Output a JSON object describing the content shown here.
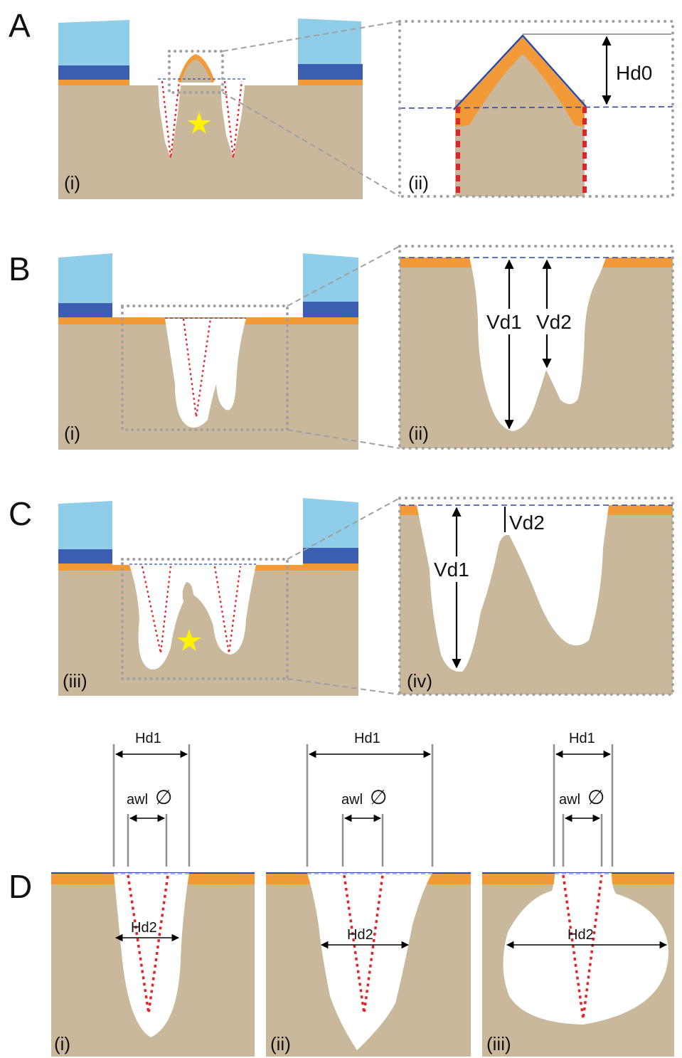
{
  "panels": {
    "A": {
      "letter": "A",
      "left_label": "(i)",
      "right_label": "(ii)",
      "measure": "Hd0"
    },
    "B": {
      "letter": "B",
      "left_label": "(i)",
      "right_label": "(ii)",
      "measure_1": "Vd1",
      "measure_2": "Vd2"
    },
    "C": {
      "letter": "C",
      "left_label": "(iii)",
      "right_label": "(iv)",
      "measure_1": "Vd1",
      "measure_2": "Vd2"
    },
    "D": {
      "letter": "D",
      "labels": [
        "(i)",
        "(ii)",
        "(iii)"
      ],
      "top_width": "Hd1",
      "awl": "awl",
      "diameter_symbol": "∅",
      "inner_width": "Hd2"
    }
  },
  "colors": {
    "bone": "#c9b89c",
    "cartilage": "#f39a38",
    "mold_light": "#8fcde8",
    "mold_dark": "#3a5fb0",
    "hole": "#ffffff",
    "awl_path": "#e0252a",
    "star": "#fff200",
    "dotted_frame": "#a0a0a0",
    "surface_line": "#2b4aa8"
  }
}
